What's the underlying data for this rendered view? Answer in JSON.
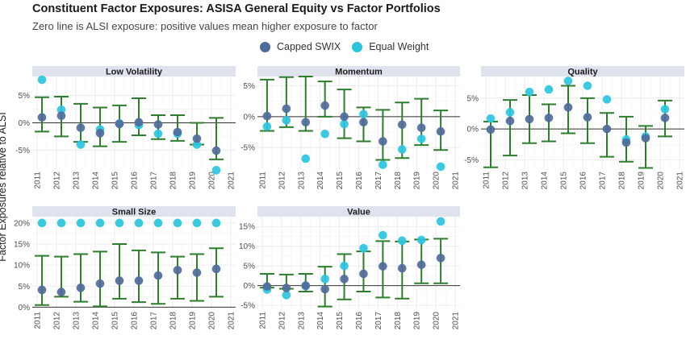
{
  "chart_data": {
    "type": "scatter",
    "title": "Constituent Factor Exposures: ASISA General Equity vs Factor Portfolios",
    "subtitle": "Zero line is ALSI exposure: positive values mean higher exposure to factor",
    "ylabel": "Factor Exposures relative to ALSI",
    "legend": {
      "position": "top",
      "items": [
        {
          "name": "Capped SWIX",
          "color": "#4f6b99"
        },
        {
          "name": "Equal Weight",
          "color": "#2ec4de"
        }
      ]
    },
    "errorbar_color": "#2e7d2e",
    "x_ticks": [
      "2011",
      "2012",
      "2013",
      "2014",
      "2015",
      "2016",
      "2017",
      "2018",
      "2019",
      "2020",
      "2021"
    ],
    "panels": [
      {
        "name": "Low Volatility",
        "ylim": [
          -8.5,
          8.5
        ],
        "y_ticks": [
          -5,
          0,
          5
        ],
        "y_tick_labels": [
          "-5%",
          "0%",
          "5%"
        ],
        "x": [
          2011.25,
          2012.25,
          2013.25,
          2014.25,
          2015.25,
          2016.25,
          2017.25,
          2018.25,
          2019.25,
          2020.25
        ],
        "capped_swix": [
          1.0,
          1.3,
          -0.9,
          -1.9,
          -0.2,
          0.1,
          -0.3,
          -1.7,
          -2.9,
          -5.1
        ],
        "equal_weight": [
          7.9,
          2.4,
          -4.0,
          -1.2,
          -0.1,
          -0.4,
          -2.0,
          -2.0,
          -4.0,
          -8.7
        ],
        "err_low": [
          -1.6,
          -2.5,
          -3.5,
          -4.3,
          -3.5,
          -2.3,
          -3.0,
          -3.3,
          -4.0,
          -6.7
        ],
        "err_high": [
          4.7,
          4.8,
          3.5,
          2.8,
          3.2,
          4.5,
          1.4,
          1.4,
          0.0,
          0.9
        ]
      },
      {
        "name": "Momentum",
        "ylim": [
          -8.5,
          6.5
        ],
        "y_ticks": [
          -5,
          0,
          5
        ],
        "y_tick_labels": [
          "-5%",
          "0%",
          "5%"
        ],
        "x": [
          2011.25,
          2012.25,
          2013.25,
          2014.25,
          2015.25,
          2016.25,
          2017.25,
          2018.25,
          2019.25,
          2020.25
        ],
        "capped_swix": [
          0.1,
          1.3,
          -0.9,
          1.8,
          0.0,
          -0.9,
          -4.0,
          -1.3,
          -1.8,
          -2.4
        ],
        "equal_weight": [
          -1.6,
          -0.6,
          -6.8,
          -2.8,
          -1.2,
          0.4,
          -7.8,
          -5.3,
          -3.6,
          -8.1
        ],
        "err_low": [
          -2.3,
          -1.7,
          -2.3,
          0.0,
          -3.5,
          -4.0,
          -7.0,
          -6.7,
          -4.6,
          -5.4
        ],
        "err_high": [
          6.0,
          6.4,
          6.5,
          5.7,
          4.4,
          1.5,
          1.1,
          2.3,
          2.9,
          1.0
        ]
      },
      {
        "name": "Quality",
        "ylim": [
          -6.5,
          8.5
        ],
        "y_ticks": [
          -5,
          0,
          5
        ],
        "y_tick_labels": [
          "-5%",
          "0%",
          "5%"
        ],
        "x": [
          2011.25,
          2012.25,
          2013.25,
          2014.25,
          2015.25,
          2016.25,
          2017.25,
          2018.25,
          2019.25,
          2020.25
        ],
        "capped_swix": [
          -0.1,
          1.3,
          1.6,
          1.8,
          3.5,
          1.9,
          0.0,
          -2.2,
          -1.5,
          1.8
        ],
        "equal_weight": [
          1.7,
          2.7,
          6.0,
          6.4,
          7.8,
          7.0,
          4.8,
          -1.7,
          -1.2,
          3.2
        ],
        "err_low": [
          -6.2,
          -4.3,
          -2.3,
          -2.0,
          -0.7,
          -2.3,
          -4.5,
          -5.3,
          -6.3,
          -1.2
        ],
        "err_high": [
          1.2,
          4.7,
          5.5,
          4.0,
          7.0,
          5.0,
          2.6,
          2.0,
          0.5,
          4.6
        ]
      },
      {
        "name": "Small Size",
        "ylim": [
          -0.5,
          21.5
        ],
        "y_ticks": [
          0,
          5,
          10,
          15,
          20
        ],
        "y_tick_labels": [
          "0%",
          "5%",
          "10%",
          "15%",
          "20%"
        ],
        "x": [
          2011.25,
          2012.25,
          2013.25,
          2014.25,
          2015.25,
          2016.25,
          2017.25,
          2018.25,
          2019.25,
          2020.25
        ],
        "capped_swix": [
          4.1,
          3.6,
          4.6,
          5.6,
          6.3,
          6.3,
          7.5,
          8.8,
          8.2,
          9.1
        ],
        "equal_weight": [
          20.0,
          20.0,
          20.0,
          20.0,
          20.0,
          20.0,
          20.0,
          20.0,
          20.0,
          20.0
        ],
        "err_low": [
          0.5,
          2.5,
          1.3,
          0.2,
          2.0,
          1.2,
          0.8,
          2.0,
          1.5,
          2.5
        ],
        "err_high": [
          12.2,
          12.0,
          12.6,
          13.2,
          15.0,
          13.5,
          13.0,
          12.0,
          12.6,
          14.0
        ]
      },
      {
        "name": "Value",
        "ylim": [
          -6.0,
          17.5
        ],
        "y_ticks": [
          -5,
          0,
          5,
          10,
          15
        ],
        "y_tick_labels": [
          "-5%",
          "0%",
          "5%",
          "10%",
          "15%"
        ],
        "x": [
          2011.25,
          2012.25,
          2013.25,
          2014.25,
          2015.25,
          2016.25,
          2017.25,
          2018.25,
          2019.25,
          2020.25
        ],
        "capped_swix": [
          -0.2,
          -0.6,
          0.0,
          -0.9,
          1.7,
          3.0,
          4.9,
          4.4,
          5.3,
          7.0
        ],
        "equal_weight": [
          -1.0,
          -2.4,
          -0.1,
          1.7,
          5.0,
          9.5,
          12.8,
          11.4,
          11.6,
          16.3
        ],
        "err_low": [
          -0.5,
          -0.8,
          -1.5,
          -5.3,
          -3.5,
          -1.5,
          -3.0,
          -3.3,
          0.6,
          0.6
        ],
        "err_high": [
          3.0,
          2.8,
          3.0,
          4.8,
          8.0,
          8.7,
          11.3,
          11.2,
          11.7,
          11.9
        ]
      }
    ]
  }
}
